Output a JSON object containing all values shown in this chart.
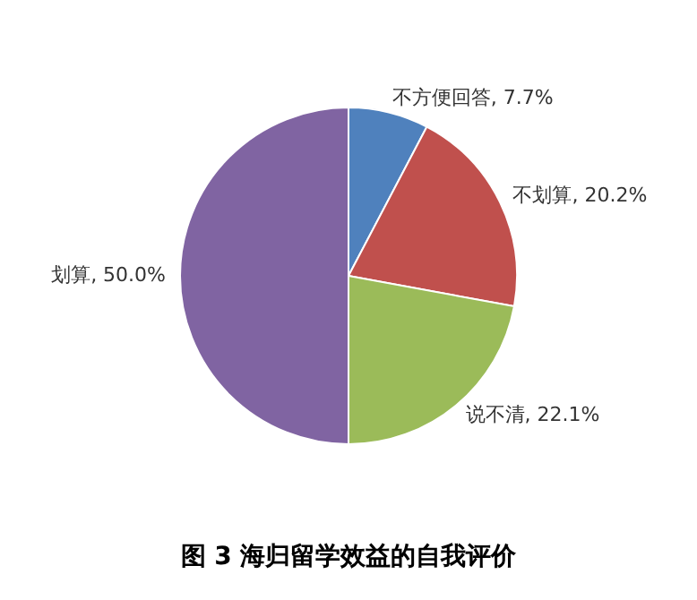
{
  "chart_data": {
    "type": "pie",
    "title": "图 3 海归留学效益的自我评价",
    "categories": [
      "不方便回答",
      "不划算",
      "说不清",
      "划算"
    ],
    "values": [
      7.7,
      20.2,
      22.1,
      50.0
    ],
    "value_labels": [
      "7.7%",
      "20.2%",
      "22.1%",
      "50.0%"
    ],
    "colors": [
      "#4f81bd",
      "#c0504d",
      "#9bbb59",
      "#8064a2"
    ]
  }
}
